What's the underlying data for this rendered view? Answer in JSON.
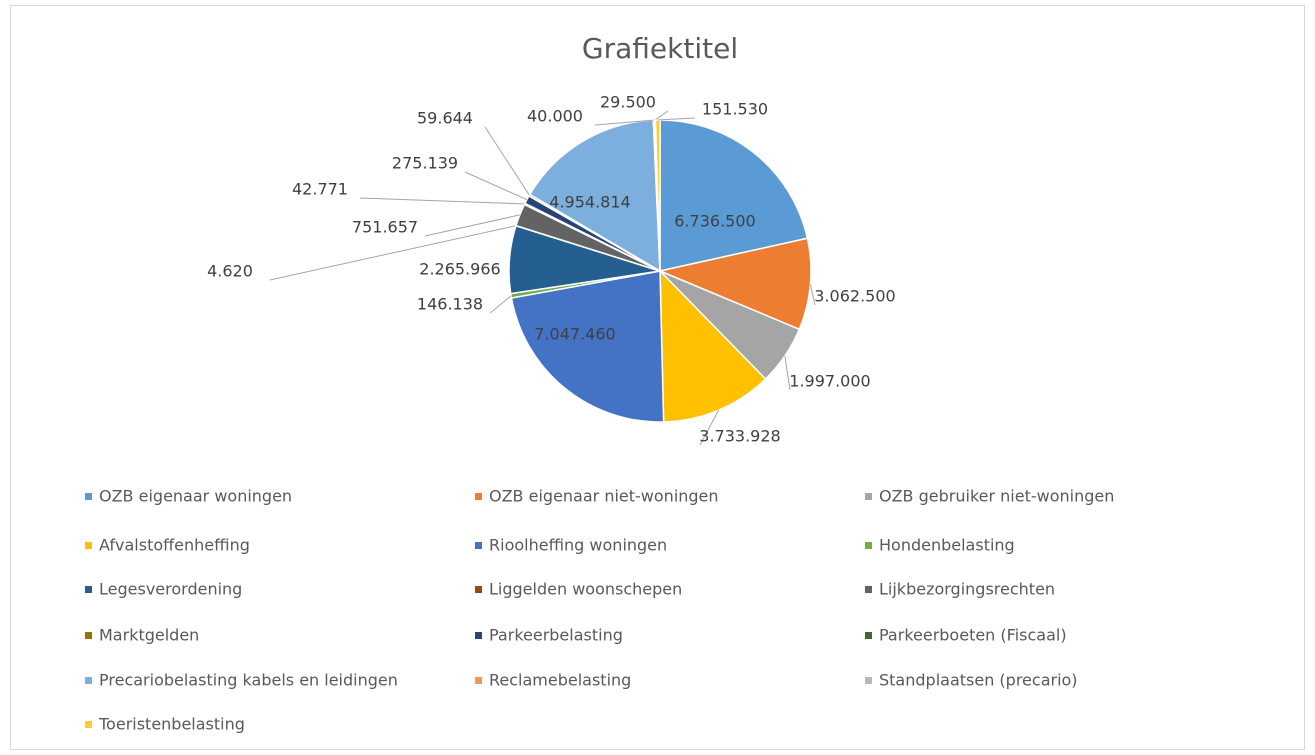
{
  "chart_data": {
    "type": "pie",
    "title": "Grafiektitel",
    "categories": [
      "OZB eigenaar woningen",
      "OZB eigenaar niet-woningen",
      "OZB gebruiker niet-woningen",
      "Afvalstoffenheffing",
      "Rioolheffing woningen",
      "Hondenbelasting",
      "Legesverordening",
      "Liggelden woonschepen",
      "Lijkbezorgingsrechten",
      "Marktgelden",
      "Parkeerbelasting",
      "Parkeerboeten (Fiscaal)",
      "Precariobelasting kabels en leidingen",
      "Reclamebelasting",
      "Standplaatsen (precario)",
      "Toeristenbelasting"
    ],
    "values": [
      6736500,
      3062500,
      1997000,
      3733928,
      7047460,
      146138,
      2265966,
      4620,
      751657,
      42771,
      275139,
      59644,
      4954814,
      40000,
      29500,
      151530
    ],
    "value_labels": [
      "6.736.500",
      "3.062.500",
      "1.997.000",
      "3.733.928",
      "7.047.460",
      "146.138",
      "2.265.966",
      "4.620",
      "751.657",
      "42.771",
      "275.139",
      "59.644",
      "4.954.814",
      "40.000",
      "29.500",
      "151.530"
    ],
    "colors": [
      "#5b9bd5",
      "#ed7d31",
      "#a5a5a5",
      "#ffc000",
      "#4472c4",
      "#70ad47",
      "#255e91",
      "#9e480e",
      "#636363",
      "#997300",
      "#264478",
      "#43682b",
      "#7cafdd",
      "#f1975a",
      "#b7b7b7",
      "#ffcd33"
    ],
    "legend": "bottom"
  }
}
